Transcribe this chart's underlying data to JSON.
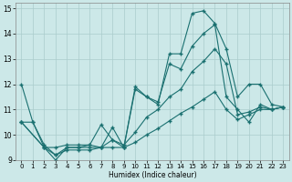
{
  "xlabel": "Humidex (Indice chaleur)",
  "bg_color": "#cce8e8",
  "grid_color": "#aacccc",
  "line_color": "#1a7070",
  "xlim": [
    -0.5,
    23.5
  ],
  "ylim": [
    9,
    15.2
  ],
  "xtick_labels": [
    "0",
    "1",
    "2",
    "3",
    "4",
    "5",
    "6",
    "7",
    "8",
    "9",
    "10",
    "11",
    "12",
    "13",
    "14",
    "15",
    "16",
    "17",
    "18",
    "19",
    "20",
    "21",
    "22",
    "23"
  ],
  "xtick_vals": [
    0,
    1,
    2,
    3,
    4,
    5,
    6,
    7,
    8,
    9,
    10,
    11,
    12,
    13,
    14,
    15,
    16,
    17,
    18,
    19,
    20,
    21,
    22,
    23
  ],
  "ytick_vals": [
    9,
    10,
    11,
    12,
    13,
    14,
    15
  ],
  "line1_x": [
    0,
    1,
    2,
    3,
    4,
    5,
    6,
    7,
    8,
    9,
    10,
    11,
    12,
    13,
    14,
    15,
    16,
    17,
    18,
    19,
    20,
    21,
    22,
    23
  ],
  "line1_y": [
    12.0,
    10.5,
    9.5,
    9.0,
    9.5,
    9.5,
    9.5,
    9.5,
    10.3,
    9.5,
    11.8,
    11.5,
    11.2,
    13.2,
    13.2,
    14.8,
    14.9,
    14.4,
    13.4,
    11.5,
    12.0,
    12.0,
    11.2,
    11.1
  ],
  "line2_x": [
    0,
    1,
    2,
    3,
    4,
    5,
    6,
    7,
    8,
    9,
    10,
    11,
    12,
    13,
    14,
    15,
    16,
    17,
    18,
    19,
    20,
    21,
    22,
    23
  ],
  "line2_y": [
    10.5,
    10.5,
    9.6,
    9.2,
    9.5,
    9.5,
    9.6,
    9.5,
    9.8,
    9.5,
    11.9,
    11.5,
    11.3,
    12.8,
    12.6,
    13.5,
    14.0,
    14.35,
    11.5,
    11.0,
    10.5,
    11.2,
    11.0,
    11.1
  ],
  "line3_x": [
    0,
    2,
    3,
    4,
    5,
    6,
    7,
    8,
    9,
    10,
    11,
    12,
    13,
    14,
    15,
    16,
    17,
    18,
    19,
    20,
    21,
    22,
    23
  ],
  "line3_y": [
    10.5,
    9.5,
    9.5,
    9.6,
    9.6,
    9.6,
    10.4,
    9.8,
    9.6,
    10.1,
    10.7,
    11.0,
    11.5,
    11.8,
    12.5,
    12.9,
    13.4,
    12.8,
    10.8,
    10.9,
    11.1,
    11.0,
    11.1
  ],
  "line4_x": [
    0,
    2,
    3,
    4,
    5,
    6,
    7,
    8,
    9,
    10,
    11,
    12,
    13,
    14,
    15,
    16,
    17,
    18,
    19,
    20,
    21,
    22,
    23
  ],
  "line4_y": [
    10.5,
    9.5,
    9.2,
    9.4,
    9.4,
    9.4,
    9.5,
    9.5,
    9.5,
    9.7,
    10.0,
    10.25,
    10.55,
    10.85,
    11.1,
    11.4,
    11.7,
    11.0,
    10.6,
    10.8,
    11.0,
    11.0,
    11.1
  ]
}
